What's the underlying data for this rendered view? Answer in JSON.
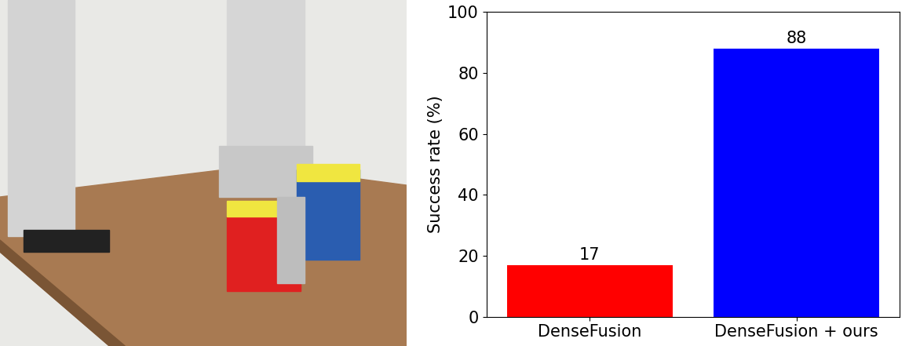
{
  "chart_data": {
    "type": "bar",
    "y_label": "Success rate (%)",
    "categories": [
      "DenseFusion",
      "DenseFusion + ours"
    ],
    "values": [
      17,
      88
    ],
    "colors": [
      "#ff0000",
      "#0000ff"
    ],
    "ylim": [
      0,
      100
    ],
    "yticks": [
      0,
      20,
      40,
      60,
      80,
      100
    ],
    "grid": false,
    "data_labels": true
  }
}
